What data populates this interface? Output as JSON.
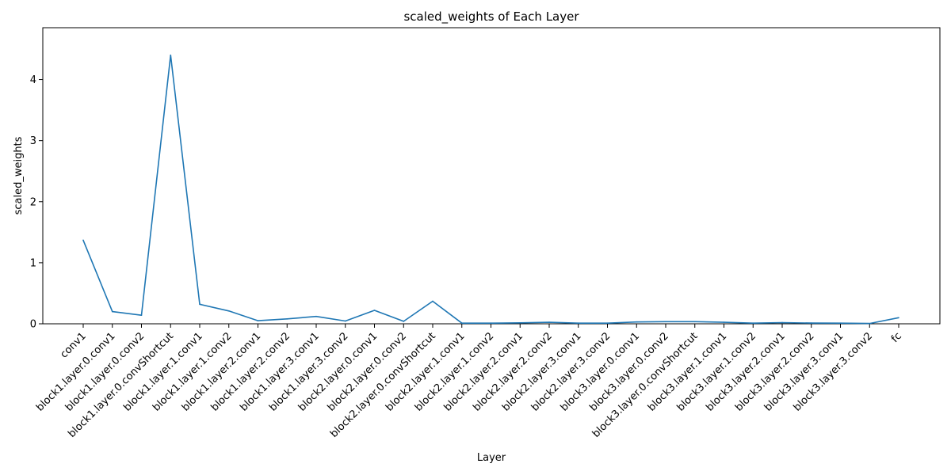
{
  "chart_data": {
    "type": "line",
    "title": "scaled_weights of Each Layer",
    "xlabel": "Layer",
    "ylabel": "scaled_weights",
    "ylim": [
      0,
      4.85
    ],
    "yticks": [
      0,
      1,
      2,
      3,
      4
    ],
    "grid": false,
    "legend": "none",
    "line_color": "#1f77b4",
    "categories": [
      "conv1",
      "block1.layer.0.conv1",
      "block1.layer.0.conv2",
      "block1.layer.0.convShortcut",
      "block1.layer.1.conv1",
      "block1.layer.1.conv2",
      "block1.layer.2.conv1",
      "block1.layer.2.conv2",
      "block1.layer.3.conv1",
      "block1.layer.3.conv2",
      "block2.layer.0.conv1",
      "block2.layer.0.conv2",
      "block2.layer.0.convShortcut",
      "block2.layer.1.conv1",
      "block2.layer.1.conv2",
      "block2.layer.2.conv1",
      "block2.layer.2.conv2",
      "block2.layer.3.conv1",
      "block2.layer.3.conv2",
      "block3.layer.0.conv1",
      "block3.layer.0.conv2",
      "block3.layer.0.convShortcut",
      "block3.layer.1.conv1",
      "block3.layer.1.conv2",
      "block3.layer.2.conv1",
      "block3.layer.2.conv2",
      "block3.layer.3.conv1",
      "block3.layer.3.conv2",
      "fc"
    ],
    "values": [
      1.37,
      0.2,
      0.14,
      4.4,
      0.32,
      0.21,
      0.05,
      0.08,
      0.12,
      0.045,
      0.22,
      0.04,
      0.37,
      0.01,
      0.01,
      0.015,
      0.025,
      0.01,
      0.01,
      0.03,
      0.035,
      0.035,
      0.025,
      0.01,
      0.02,
      0.012,
      0.01,
      0.005,
      0.1
    ]
  }
}
